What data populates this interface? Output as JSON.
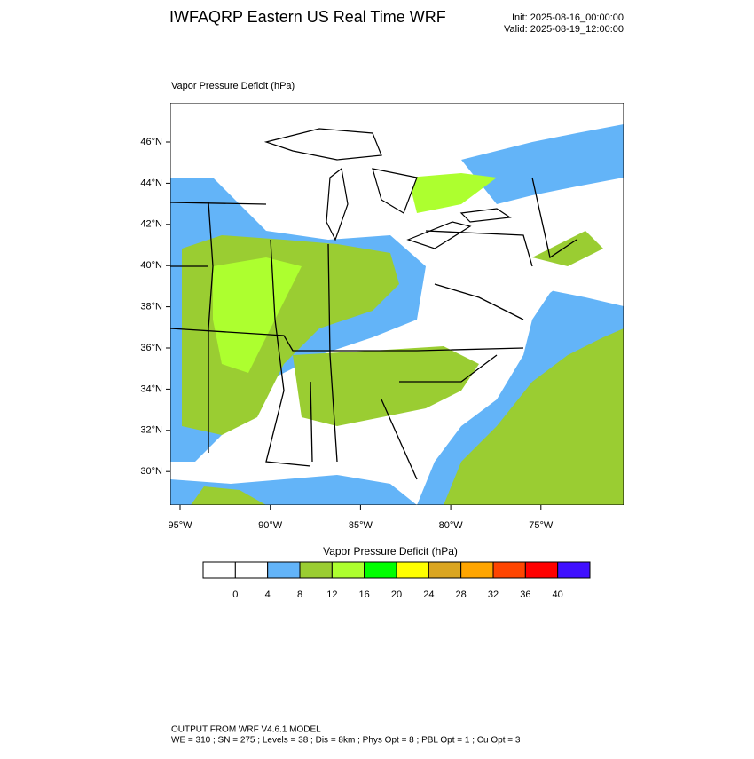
{
  "header": {
    "title": "IWFAQRP Eastern US Real Time WRF",
    "init": "Init: 2025-08-16_00:00:00",
    "valid": "Valid: 2025-08-19_12:00:00"
  },
  "map": {
    "field_label": "Vapor Pressure Deficit   (hPa)",
    "lat_labels": [
      "46°N",
      "44°N",
      "42°N",
      "40°N",
      "38°N",
      "36°N",
      "34°N",
      "32°N",
      "30°N"
    ],
    "lon_labels": [
      "95°W",
      "90°W",
      "85°W",
      "80°W",
      "75°W"
    ]
  },
  "colorbar": {
    "title": "Vapor Pressure Deficit  (hPa)",
    "colors": [
      "#ffffff",
      "#ffffff",
      "#63b4f8",
      "#9acd32",
      "#adff2f",
      "#00ff00",
      "#ffff00",
      "#daa520",
      "#ffa500",
      "#ff4500",
      "#ff0000",
      "#4010ff"
    ],
    "labels": [
      0,
      4,
      8,
      12,
      16,
      20,
      24,
      28,
      32,
      36,
      40
    ]
  },
  "footer": {
    "line1": "OUTPUT FROM WRF V4.6.1 MODEL",
    "line2": "WE = 310 ; SN = 275 ; Levels = 38 ; Dis = 8km ; Phys Opt = 8 ; PBL Opt = 1 ; Cu Opt = 3"
  }
}
